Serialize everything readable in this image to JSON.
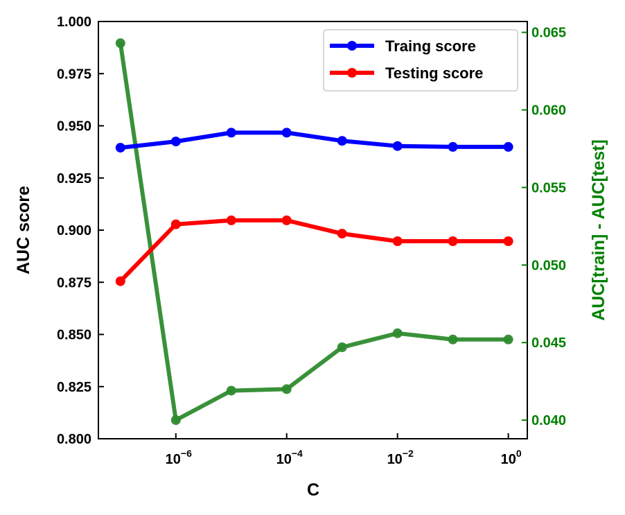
{
  "chart_data": {
    "type": "line",
    "xlabel": "C",
    "ylabel": "AUC score",
    "y2label": "AUC[train] - AUC[test]",
    "x_scale": "log",
    "x": [
      1e-07,
      1e-06,
      1e-05,
      0.0001,
      0.001,
      0.01,
      0.1,
      1
    ],
    "xlim": [
      4e-08,
      2.2
    ],
    "x_ticks": [
      {
        "base": "10",
        "exp": "−6",
        "value": 1e-06
      },
      {
        "base": "10",
        "exp": "−4",
        "value": 0.0001
      },
      {
        "base": "10",
        "exp": "−2",
        "value": 0.01
      },
      {
        "base": "10",
        "exp": "0",
        "value": 1
      }
    ],
    "ylim": [
      0.8,
      1.0
    ],
    "y_ticks": [
      "0.800",
      "0.825",
      "0.850",
      "0.875",
      "0.900",
      "0.925",
      "0.950",
      "0.975",
      "1.000"
    ],
    "y2lim": [
      0.0388,
      0.0657
    ],
    "y2_ticks": [
      "0.040",
      "0.045",
      "0.050",
      "0.055",
      "0.060",
      "0.065"
    ],
    "series": [
      {
        "name": "Traing score",
        "axis": "left",
        "color": "#0000ff",
        "values": [
          0.9395,
          0.9425,
          0.9467,
          0.9467,
          0.9428,
          0.9403,
          0.9399,
          0.9399
        ]
      },
      {
        "name": "Testing score",
        "axis": "left",
        "color": "#ff0000",
        "values": [
          0.8755,
          0.9028,
          0.9047,
          0.9047,
          0.8983,
          0.8947,
          0.8947,
          0.8947
        ]
      },
      {
        "name": "",
        "axis": "right",
        "color": "#2e8b2e",
        "values": [
          0.0643,
          0.04,
          0.0419,
          0.042,
          0.0447,
          0.0456,
          0.0452,
          0.0452
        ]
      }
    ],
    "legend": {
      "placement": "top-right",
      "entries": [
        "Traing score",
        "Testing score"
      ]
    },
    "grid": false,
    "colors": {
      "axis": "#000000",
      "right_axis": "#008000"
    }
  }
}
